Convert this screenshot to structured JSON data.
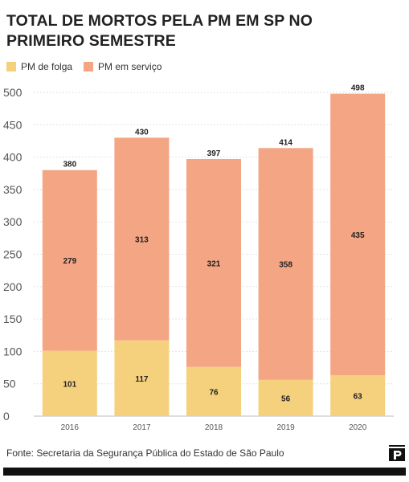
{
  "title": "TOTAL DE MORTOS PELA PM EM SP NO PRIMEIRO SEMESTRE",
  "source": "Fonte: Secretaria da Segurança Pública do Estado de São Paulo",
  "legend": [
    {
      "label": "PM de folga",
      "color": "#F5D17E"
    },
    {
      "label": "PM em serviço",
      "color": "#F4A583"
    }
  ],
  "chart_data": {
    "type": "bar",
    "stacked": true,
    "categories": [
      "2016",
      "2017",
      "2018",
      "2019",
      "2020"
    ],
    "series": [
      {
        "name": "PM de folga",
        "color": "#F5D17E",
        "values": [
          101,
          117,
          76,
          56,
          63
        ]
      },
      {
        "name": "PM em serviço",
        "color": "#F4A583",
        "values": [
          279,
          313,
          321,
          358,
          435
        ]
      }
    ],
    "totals": [
      380,
      430,
      397,
      414,
      498
    ],
    "ylim": [
      0,
      500
    ],
    "yticks": [
      0,
      50,
      100,
      150,
      200,
      250,
      300,
      350,
      400,
      450,
      500
    ],
    "grid": true,
    "legend_position": "top-left"
  }
}
